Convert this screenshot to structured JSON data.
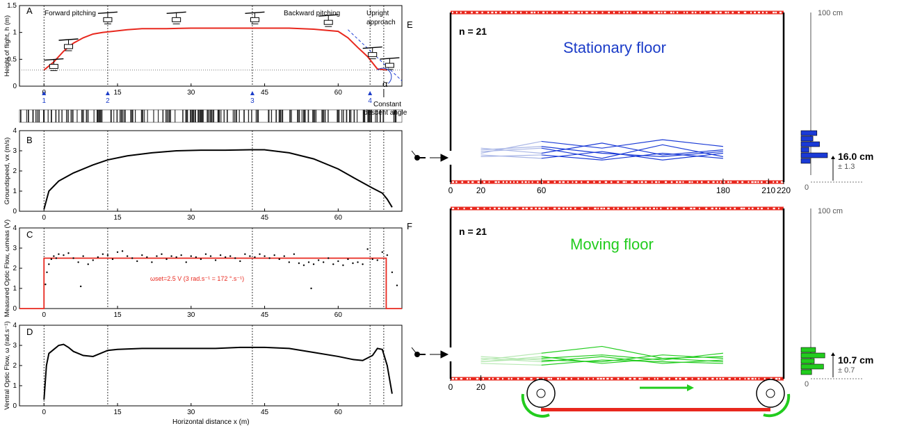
{
  "colors": {
    "red": "#e8281e",
    "blue": "#1a3ad6",
    "blue_light": "#a9b6e6",
    "green": "#22cc1e",
    "green_light": "#b6e8b2",
    "label_blue": "#1b3cc8"
  },
  "chart_data": [
    {
      "panel": "A",
      "type": "line",
      "ylabel": "Height of flight, h (m)",
      "xlim": [
        -5,
        73
      ],
      "ylim": [
        0,
        1.5
      ],
      "xticks": [
        "0",
        "15",
        "30",
        "45",
        "60"
      ],
      "yticks": [
        "0",
        "0.5",
        "1",
        "1.5"
      ],
      "phase_labels": [
        "Forward pitching",
        "Backward pitching",
        "Upright approach"
      ],
      "markers": [
        "1",
        "2",
        "3",
        "4"
      ],
      "annotation": "Constant descent angle",
      "angle_symbol": "α",
      "icon_labels": [
        "X",
        "θ"
      ],
      "x": [
        0,
        2,
        4,
        6,
        8,
        10,
        12,
        14,
        17,
        20,
        25,
        30,
        35,
        40,
        45,
        50,
        55,
        60,
        62,
        64,
        66,
        68,
        70
      ],
      "y": [
        0.3,
        0.45,
        0.65,
        0.8,
        0.9,
        0.97,
        1.0,
        1.02,
        1.05,
        1.07,
        1.07,
        1.08,
        1.08,
        1.08,
        1.08,
        1.08,
        1.06,
        1.02,
        0.9,
        0.72,
        0.55,
        0.32,
        0.3
      ]
    },
    {
      "panel": "B",
      "type": "line",
      "ylabel": "Groundspeed, vx (m/s)",
      "xlim": [
        -5,
        73
      ],
      "ylim": [
        0,
        4
      ],
      "xticks": [
        "0",
        "15",
        "30",
        "45",
        "60"
      ],
      "yticks": [
        "0",
        "1",
        "2",
        "3",
        "4"
      ],
      "x": [
        0,
        1,
        3,
        6,
        10,
        13,
        17,
        22,
        27,
        32,
        37,
        42,
        45,
        50,
        55,
        60,
        64,
        67,
        69,
        70,
        71
      ],
      "y": [
        0.1,
        1.0,
        1.5,
        1.9,
        2.3,
        2.55,
        2.75,
        2.9,
        3.0,
        3.03,
        3.03,
        3.05,
        3.05,
        2.9,
        2.6,
        2.1,
        1.55,
        1.15,
        0.9,
        0.6,
        0.2
      ]
    },
    {
      "panel": "C",
      "type": "scatter",
      "ylabel": "Measured Optic Flow, ωmeas (V)",
      "xlim": [
        -5,
        73
      ],
      "ylim": [
        0,
        4
      ],
      "xticks": [
        "0",
        "15",
        "30",
        "45",
        "60"
      ],
      "yticks": [
        "0",
        "1",
        "2",
        "3",
        "4"
      ],
      "setpoint_label": "ωset=2.5 V  (3 rad.s⁻¹ = 172 °.s⁻¹)",
      "setpoint": 2.5,
      "x": [
        0.3,
        0.6,
        1,
        1.5,
        2,
        2.5,
        3,
        4,
        5,
        6,
        7,
        8,
        9,
        10,
        11,
        12,
        13,
        14,
        15,
        16,
        17,
        18,
        19,
        20,
        21,
        22,
        23,
        24,
        25,
        26,
        27,
        28,
        29,
        30,
        31,
        32,
        33,
        34,
        35,
        36,
        37,
        38,
        39,
        40,
        41,
        42,
        43,
        44,
        45,
        46,
        47,
        48,
        49,
        50,
        51,
        52,
        53,
        54,
        55,
        56,
        57,
        58,
        59,
        60,
        61,
        62,
        63,
        64,
        65,
        66,
        67,
        68,
        69,
        70,
        71,
        72,
        7.5,
        54.5
      ],
      "y": [
        1.2,
        1.8,
        2.2,
        2.45,
        2.6,
        2.5,
        2.7,
        2.65,
        2.75,
        2.5,
        2.3,
        2.6,
        2.2,
        2.4,
        2.55,
        2.7,
        2.65,
        2.45,
        2.8,
        2.85,
        2.6,
        2.5,
        2.35,
        2.65,
        2.55,
        2.3,
        2.6,
        2.7,
        2.45,
        2.6,
        2.55,
        2.65,
        2.3,
        2.6,
        2.55,
        2.45,
        2.7,
        2.6,
        2.4,
        2.65,
        2.55,
        2.6,
        2.5,
        2.35,
        2.7,
        2.6,
        2.55,
        2.7,
        2.6,
        2.5,
        2.65,
        2.45,
        2.6,
        2.3,
        2.7,
        2.25,
        2.15,
        2.3,
        2.2,
        2.4,
        2.3,
        2.5,
        2.2,
        2.35,
        2.15,
        2.45,
        2.25,
        2.3,
        2.2,
        2.95,
        2.45,
        2.4,
        2.8,
        2.65,
        1.8,
        1.15,
        1.1,
        1.0
      ]
    },
    {
      "panel": "D",
      "type": "line",
      "ylabel": "Ventral Optic Flow, ω (rad.s⁻¹)",
      "xlabel": "Horizontal distance x (m)",
      "xlim": [
        -5,
        73
      ],
      "ylim": [
        0,
        4
      ],
      "xticks": [
        "0",
        "15",
        "30",
        "45",
        "60"
      ],
      "yticks": [
        "0",
        "1",
        "2",
        "3",
        "4"
      ],
      "x": [
        0,
        0.5,
        1,
        2,
        3,
        4,
        5,
        6,
        8,
        10,
        13,
        15,
        20,
        25,
        30,
        35,
        40,
        45,
        50,
        55,
        60,
        63,
        65,
        67,
        68,
        69,
        70,
        71
      ],
      "y": [
        0.3,
        2.0,
        2.6,
        2.8,
        3.0,
        3.05,
        2.9,
        2.7,
        2.5,
        2.45,
        2.75,
        2.8,
        2.85,
        2.85,
        2.85,
        2.85,
        2.9,
        2.9,
        2.85,
        2.65,
        2.45,
        2.3,
        2.25,
        2.5,
        2.85,
        2.8,
        2.0,
        0.6
      ]
    },
    {
      "panel": "E",
      "type": "line",
      "title": "Stationary floor",
      "n_label": "n = 21",
      "xticks": [
        "0",
        "20",
        "60",
        "180",
        "210",
        "220"
      ],
      "xlim": [
        0,
        220
      ],
      "ylim": [
        0,
        100
      ],
      "height_label": "100 cm",
      "hist_zero": "0",
      "mean_label": "16.0 cm",
      "sd_label": "± 1.3",
      "histogram_values": [
        0.6,
        0.45,
        0.7,
        0.3,
        1.0,
        0.35
      ],
      "series": [
        {
          "x": [
            20,
            60,
            100,
            140,
            180
          ],
          "y": [
            18,
            20,
            14,
            22,
            15
          ]
        },
        {
          "x": [
            20,
            60,
            100,
            140,
            180
          ],
          "y": [
            20,
            17,
            23,
            16,
            19
          ]
        },
        {
          "x": [
            20,
            60,
            100,
            140,
            180
          ],
          "y": [
            16,
            14,
            18,
            13,
            17
          ]
        },
        {
          "x": [
            20,
            60,
            100,
            140,
            180
          ],
          "y": [
            17,
            24,
            20,
            25,
            21
          ]
        },
        {
          "x": [
            20,
            60,
            100,
            140,
            180
          ],
          "y": [
            15,
            16,
            13,
            17,
            14
          ]
        },
        {
          "x": [
            20,
            60,
            100,
            140,
            180
          ],
          "y": [
            19,
            21,
            17,
            15,
            18
          ]
        }
      ]
    },
    {
      "panel": "F",
      "type": "line",
      "title": "Moving floor",
      "n_label": "n = 21",
      "xticks": [
        "0",
        "20"
      ],
      "xlim": [
        0,
        220
      ],
      "ylim": [
        0,
        100
      ],
      "height_label": "100 cm",
      "hist_zero": "0",
      "mean_label": "10.7 cm",
      "sd_label": "± 0.7",
      "histogram_values": [
        0.55,
        0.9,
        0.5,
        0.85,
        0.4
      ],
      "series": [
        {
          "x": [
            20,
            60,
            100,
            140,
            180
          ],
          "y": [
            12,
            10,
            13,
            9,
            11
          ]
        },
        {
          "x": [
            20,
            60,
            100,
            140,
            180
          ],
          "y": [
            10,
            13,
            9,
            12,
            10
          ]
        },
        {
          "x": [
            20,
            60,
            100,
            140,
            180
          ],
          "y": [
            11,
            15,
            19,
            12,
            13
          ]
        },
        {
          "x": [
            20,
            60,
            100,
            140,
            180
          ],
          "y": [
            9,
            8,
            11,
            10,
            9
          ]
        },
        {
          "x": [
            20,
            60,
            100,
            140,
            180
          ],
          "y": [
            13,
            11,
            10,
            14,
            12
          ]
        },
        {
          "x": [
            20,
            60,
            100,
            140,
            180
          ],
          "y": [
            10,
            12,
            14,
            11,
            15
          ]
        }
      ]
    }
  ]
}
